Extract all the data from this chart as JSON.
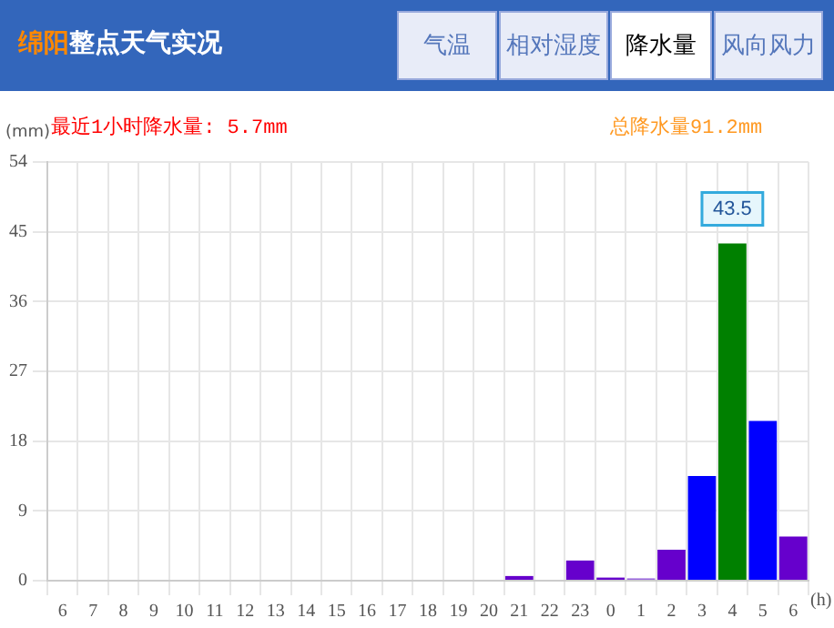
{
  "chart_data": {
    "type": "bar",
    "title": "绵阳整点天气实况",
    "ylabel": "(mm)",
    "xlabel": "(h)",
    "annotations": [
      "气温",
      "相对湿度",
      "降水量",
      "风向风力",
      "最近1小时降水量: 5.7mm",
      "总降水量91.2mm"
    ],
    "categories": [
      "6",
      "7",
      "8",
      "9",
      "10",
      "11",
      "12",
      "13",
      "14",
      "15",
      "16",
      "17",
      "18",
      "19",
      "20",
      "21",
      "22",
      "23",
      "0",
      "1",
      "2",
      "3",
      "4",
      "5",
      "6"
    ],
    "values": [
      null,
      null,
      null,
      null,
      null,
      null,
      null,
      null,
      null,
      null,
      null,
      null,
      null,
      null,
      null,
      0.6,
      null,
      2.6,
      0.4,
      0.3,
      4.0,
      13.5,
      43.5,
      20.6,
      5.7
    ],
    "colors": [
      "#6600cc",
      "#6600cc",
      "#6600cc",
      "#6600cc",
      "#6600cc",
      "#6600cc",
      "#6600cc",
      "#6600cc",
      "#6600cc",
      "#6600cc",
      "#6600cc",
      "#6600cc",
      "#6600cc",
      "#6600cc",
      "#6600cc",
      "#6600cc",
      "#6600cc",
      "#6600cc",
      "#6600cc",
      "#9966dd",
      "#6600cc",
      "#0000ff",
      "#008000",
      "#0000ff",
      "#6600cc"
    ],
    "value_labels": [
      null,
      null,
      null,
      null,
      null,
      null,
      null,
      null,
      null,
      null,
      null,
      null,
      null,
      null,
      null,
      null,
      null,
      null,
      null,
      null,
      null,
      null,
      "43.5",
      null,
      null
    ],
    "ylim": [
      0,
      54
    ],
    "yticks": [
      0,
      9,
      18,
      27,
      36,
      45,
      54
    ],
    "grid": true,
    "legend": false
  }
}
